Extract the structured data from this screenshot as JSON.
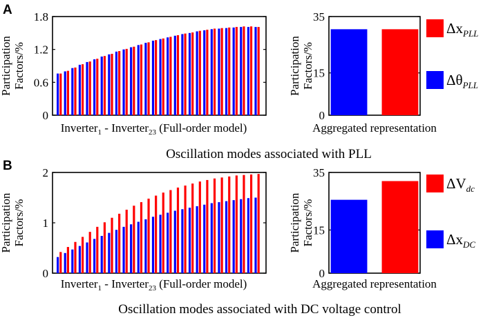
{
  "figure": {
    "panel_a_letter": "A",
    "panel_b_letter": "B",
    "caption_a": "Oscillation modes associated with PLL",
    "caption_b": "Oscillation modes associated with DC voltage control"
  },
  "colors": {
    "red": "#ff0000",
    "blue": "#0000ff",
    "axis": "#000000"
  },
  "chart_data": [
    {
      "id": "A-left",
      "type": "bar",
      "title": "",
      "ylabel_line1": "Participation",
      "ylabel_line2": "Factors/%",
      "xlabel_parts": [
        "Inverter",
        "1",
        " - Inverter",
        "23",
        " (Full-order model)"
      ],
      "ylim": [
        0,
        1.8
      ],
      "yticks": [
        "0",
        "0.6",
        "1.2",
        "1.8"
      ],
      "ytick_values": [
        0,
        0.6,
        1.2,
        1.8
      ],
      "grid": false,
      "series": [
        {
          "name": "Δθ_PLL",
          "color": "blue",
          "values": [
            0.76,
            0.8,
            0.86,
            0.92,
            0.97,
            1.02,
            1.07,
            1.11,
            1.16,
            1.2,
            1.24,
            1.28,
            1.32,
            1.36,
            1.39,
            1.42,
            1.45,
            1.48,
            1.5,
            1.53,
            1.55,
            1.57,
            1.58,
            1.59,
            1.6,
            1.61,
            1.61,
            1.61
          ]
        },
        {
          "name": "Δx_PLL",
          "color": "red",
          "values": [
            0.76,
            0.81,
            0.87,
            0.93,
            0.98,
            1.03,
            1.08,
            1.12,
            1.17,
            1.21,
            1.25,
            1.29,
            1.33,
            1.37,
            1.4,
            1.43,
            1.46,
            1.49,
            1.51,
            1.54,
            1.56,
            1.58,
            1.59,
            1.6,
            1.61,
            1.62,
            1.62,
            1.61
          ]
        }
      ]
    },
    {
      "id": "A-right",
      "type": "bar",
      "ylabel_line1": "Participation",
      "ylabel_line2": "Factors/%",
      "xlabel": "Aggregated representation",
      "ylim": [
        0,
        35
      ],
      "yticks": [
        "0",
        "15",
        "35"
      ],
      "ytick_values": [
        0,
        15,
        35
      ],
      "categories": [
        "Δθ_PLL",
        "Δx_PLL"
      ],
      "values": [
        30.5,
        30.5
      ],
      "colors": [
        "blue",
        "red"
      ]
    },
    {
      "id": "B-left",
      "type": "bar",
      "ylabel_line1": "Participation",
      "ylabel_line2": "Factors/%",
      "xlabel_parts": [
        "Inverter",
        "1",
        " - Inverter",
        "23",
        " (Full-order model)"
      ],
      "ylim": [
        0,
        2
      ],
      "yticks": [
        "0",
        "1",
        "2"
      ],
      "ytick_values": [
        0,
        1,
        2
      ],
      "series": [
        {
          "name": "Δx_DC",
          "color": "blue",
          "values": [
            0.32,
            0.4,
            0.47,
            0.54,
            0.61,
            0.68,
            0.74,
            0.8,
            0.86,
            0.92,
            0.97,
            1.02,
            1.07,
            1.12,
            1.16,
            1.2,
            1.24,
            1.27,
            1.3,
            1.33,
            1.36,
            1.39,
            1.41,
            1.43,
            1.45,
            1.47,
            1.49,
            1.5
          ]
        },
        {
          "name": "ΔV_dc",
          "color": "red",
          "values": [
            0.42,
            0.52,
            0.62,
            0.72,
            0.82,
            0.92,
            1.01,
            1.1,
            1.18,
            1.26,
            1.34,
            1.41,
            1.48,
            1.54,
            1.6,
            1.65,
            1.7,
            1.74,
            1.78,
            1.82,
            1.85,
            1.88,
            1.9,
            1.92,
            1.94,
            1.95,
            1.96,
            1.97
          ]
        }
      ]
    },
    {
      "id": "B-right",
      "type": "bar",
      "ylabel_line1": "Participation",
      "ylabel_line2": "Factors/%",
      "xlabel": "Aggregated representation",
      "ylim": [
        0,
        35
      ],
      "yticks": [
        "0",
        "15",
        "35"
      ],
      "ytick_values": [
        0,
        15,
        35
      ],
      "categories": [
        "Δx_DC",
        "ΔV_dc"
      ],
      "values": [
        25.5,
        32
      ],
      "colors": [
        "blue",
        "red"
      ]
    }
  ],
  "legend_a": [
    {
      "color": "red",
      "symbol": "Δx",
      "sub": "PLL"
    },
    {
      "color": "blue",
      "symbol": "Δθ",
      "sub": "PLL"
    }
  ],
  "legend_b": [
    {
      "color": "red",
      "symbol": "ΔV",
      "sub": "dc"
    },
    {
      "color": "blue",
      "symbol": "Δx",
      "sub": "DC"
    }
  ]
}
